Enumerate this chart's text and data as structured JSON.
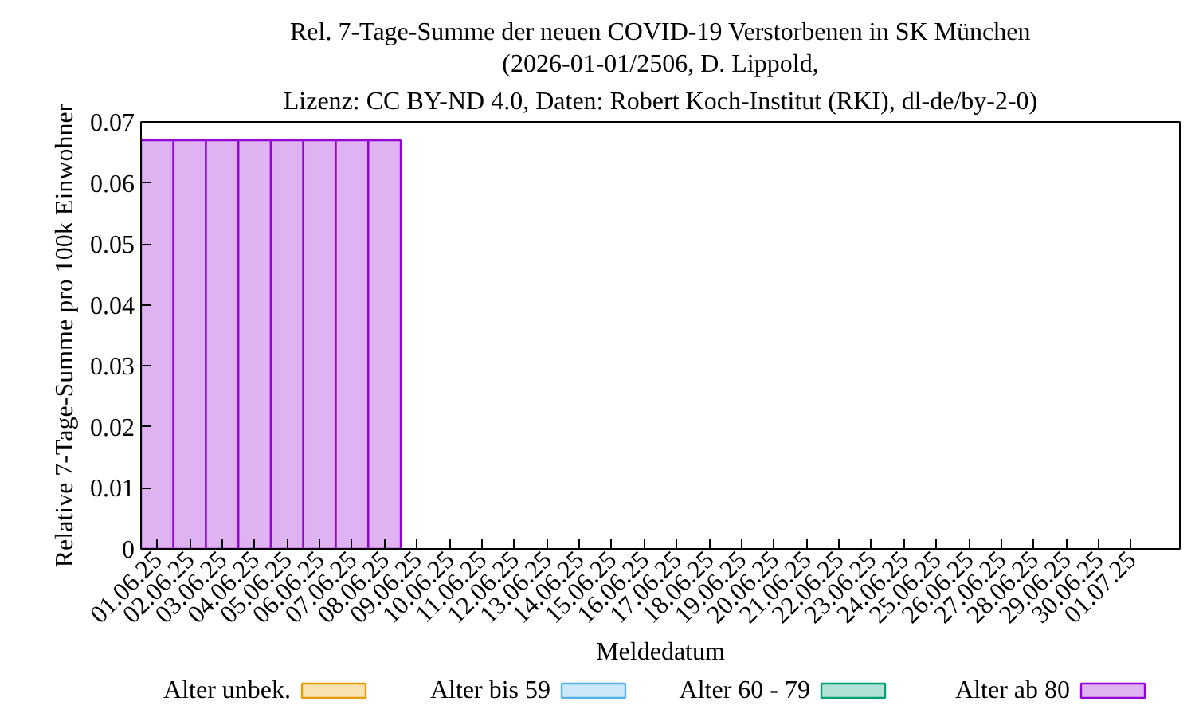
{
  "chart_data": {
    "type": "bar",
    "title": "Rel. 7-Tage-Summe der neuen COVID-19 Verstorbenen in SK München",
    "subtitle": "(2026-01-01/2506, D. Lippold,",
    "annotations": [
      "Lizenz: CC BY-ND 4.0, Daten: Robert Koch-Institut (RKI), dl-de/by-2-0)"
    ],
    "xlabel": "Meldedatum",
    "ylabel": "Relative 7-Tage-Summe pro 100k Einwohner",
    "categories": [
      "01.06.25",
      "02.06.25",
      "03.06.25",
      "04.06.25",
      "05.06.25",
      "06.06.25",
      "07.06.25",
      "08.06.25",
      "09.06.25",
      "10.06.25",
      "11.06.25",
      "12.06.25",
      "13.06.25",
      "14.06.25",
      "15.06.25",
      "16.06.25",
      "17.06.25",
      "18.06.25",
      "19.06.25",
      "20.06.25",
      "21.06.25",
      "22.06.25",
      "23.06.25",
      "24.06.25",
      "25.06.25",
      "26.06.25",
      "27.06.25",
      "28.06.25",
      "29.06.25",
      "30.06.25",
      "01.07.25"
    ],
    "stacked": true,
    "series": [
      {
        "name": "Alter unbek.",
        "color": "#f8e2b2",
        "values": [
          0,
          0,
          0,
          0,
          0,
          0,
          0,
          0,
          0,
          0,
          0,
          0,
          0,
          0,
          0,
          0,
          0,
          0,
          0,
          0,
          0,
          0,
          0,
          0,
          0,
          0,
          0,
          0,
          0,
          0,
          0
        ]
      },
      {
        "name": "Alter bis 59",
        "color": "#cce8f8",
        "values": [
          0,
          0,
          0,
          0,
          0,
          0,
          0,
          0,
          0,
          0,
          0,
          0,
          0,
          0,
          0,
          0,
          0,
          0,
          0,
          0,
          0,
          0,
          0,
          0,
          0,
          0,
          0,
          0,
          0,
          0,
          0
        ]
      },
      {
        "name": "Alter 60 - 79",
        "color": "#b2e2d5",
        "values": [
          0,
          0,
          0,
          0,
          0,
          0,
          0,
          0,
          0,
          0,
          0,
          0,
          0,
          0,
          0,
          0,
          0,
          0,
          0,
          0,
          0,
          0,
          0,
          0,
          0,
          0,
          0,
          0,
          0,
          0,
          0
        ]
      },
      {
        "name": "Alter ab 80",
        "color": "#dfb3f2",
        "values": [
          0.067,
          0.067,
          0.067,
          0.067,
          0.067,
          0.067,
          0.067,
          0.067,
          0,
          0,
          0,
          0,
          0,
          0,
          0,
          0,
          0,
          0,
          0,
          0,
          0,
          0,
          0,
          0,
          0,
          0,
          0,
          0,
          0,
          0,
          0
        ]
      }
    ],
    "ylim": [
      0,
      0.07
    ],
    "yticks": [
      0,
      0.01,
      0.02,
      0.03,
      0.04,
      0.05,
      0.06,
      0.07
    ],
    "legend": "bottom"
  }
}
